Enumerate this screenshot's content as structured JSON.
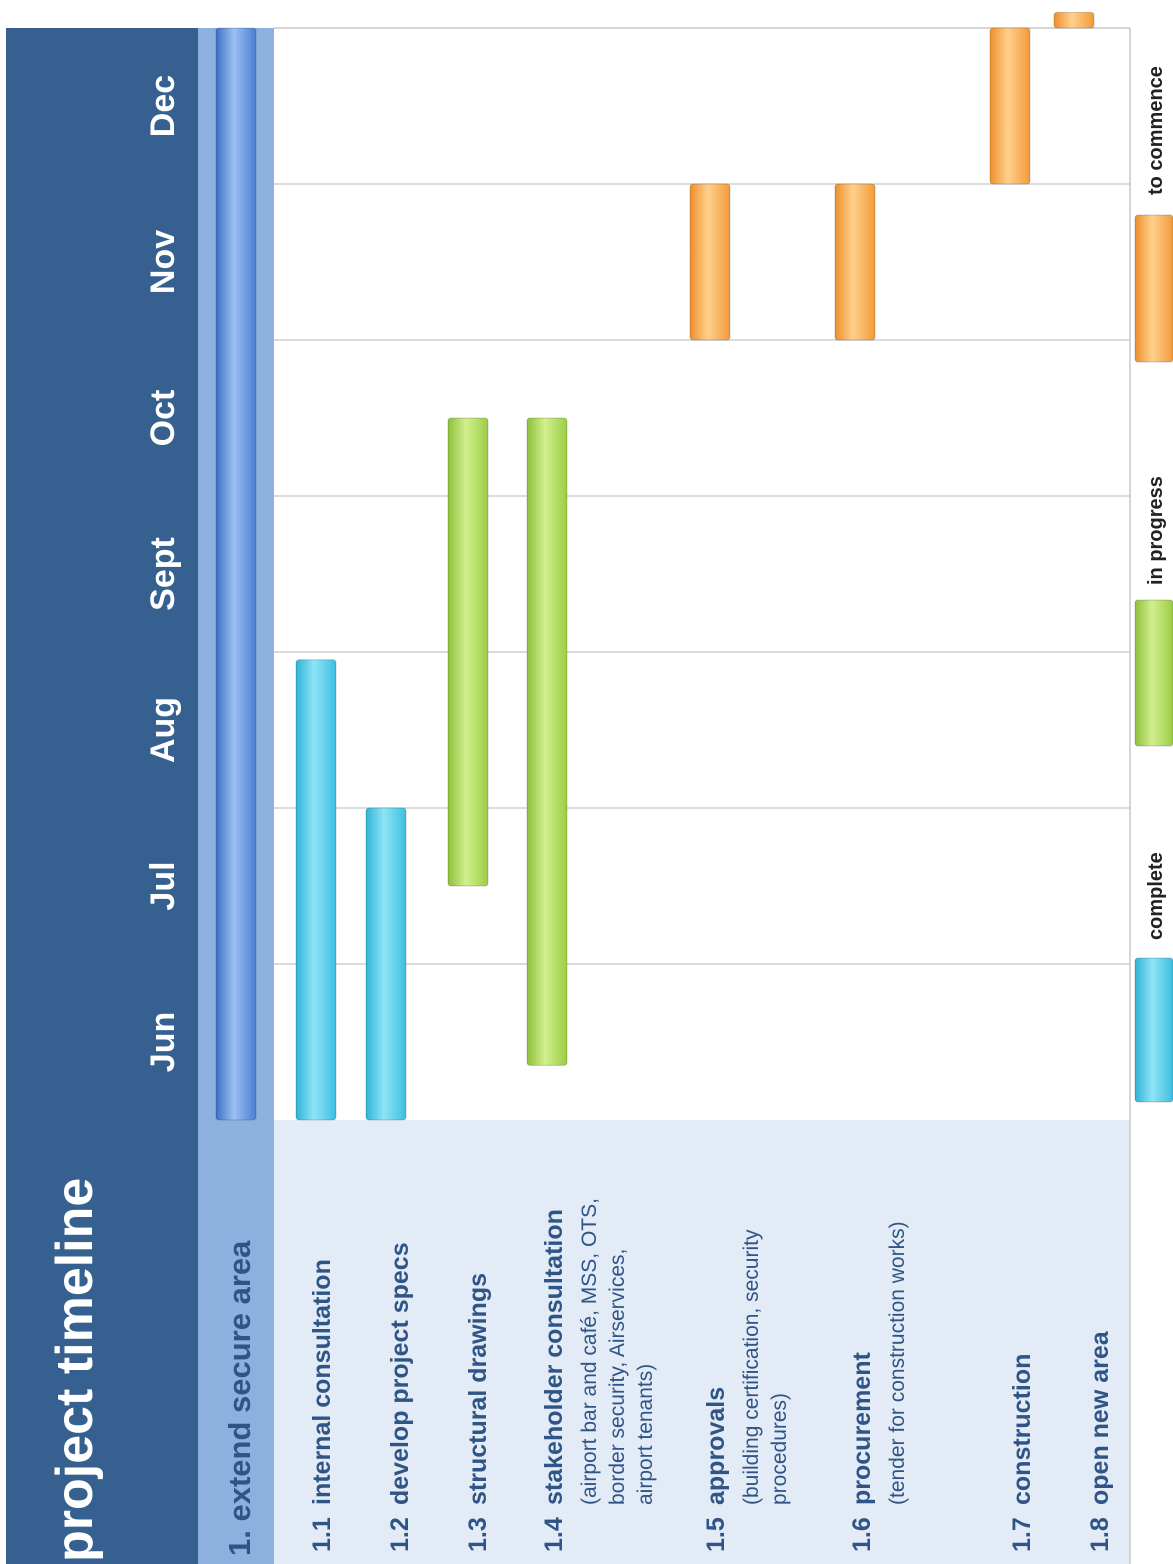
{
  "title": "project timeline",
  "colors": {
    "header_bg": "#35608f",
    "section_band": "#8cb1de",
    "label_bg": "#e3ebf7",
    "summary_bar": "#4f82d6",
    "complete": "#4ccbe8",
    "in_progress": "#a6d64e",
    "to_commence": "#f6a347",
    "gridline": "#c8c8c8"
  },
  "chart_data": {
    "type": "gantt",
    "months": [
      "Jun",
      "Jul",
      "Aug",
      "Sept",
      "Oct",
      "Nov",
      "Dec"
    ],
    "section": {
      "label": "1. extend secure area",
      "start": 0.0,
      "end": 7.0,
      "status": "summary"
    },
    "tasks": [
      {
        "num": "1.1",
        "label": "internal consultation",
        "note": [],
        "start": 0.0,
        "end": 2.95,
        "status": "complete"
      },
      {
        "num": "1.2",
        "label": "develop project specs",
        "note": [],
        "start": 0.0,
        "end": 2.0,
        "status": "complete"
      },
      {
        "num": "1.3",
        "label": "structural drawings",
        "note": [],
        "start": 1.5,
        "end": 4.5,
        "status": "in_progress"
      },
      {
        "num": "1.4",
        "label": "stakeholder consultation",
        "note": [
          "(airport bar and café,  MSS, OTS,",
          "border security, Airservices,",
          "airport tenants)"
        ],
        "start": 0.35,
        "end": 4.5,
        "status": "in_progress"
      },
      {
        "num": "1.5",
        "label": "approvals",
        "note": [
          "(building certification, security",
          "procedures)"
        ],
        "start": 5.0,
        "end": 6.0,
        "status": "to_commence"
      },
      {
        "num": "1.6",
        "label": "procurement",
        "note": [
          "(tender for construction works)"
        ],
        "start": 5.0,
        "end": 6.0,
        "status": "to_commence"
      },
      {
        "num": "1.7",
        "label": "construction",
        "note": [],
        "start": 6.0,
        "end": 7.0,
        "status": "to_commence"
      },
      {
        "num": "1.8",
        "label": "open new area",
        "note": [],
        "start": 7.0,
        "end": 7.1,
        "status": "to_commence"
      }
    ],
    "legend": [
      {
        "label": "complete",
        "status": "complete"
      },
      {
        "label": "in progress",
        "status": "in_progress"
      },
      {
        "label": "to commence",
        "status": "to_commence"
      }
    ]
  }
}
